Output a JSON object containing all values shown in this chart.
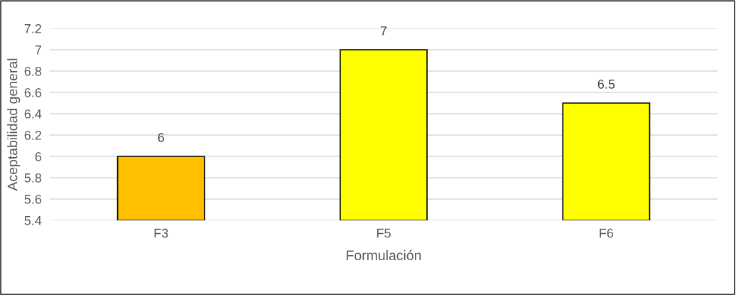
{
  "chart_data": {
    "type": "bar",
    "xlabel": "Formulación",
    "ylabel": "Aceptabilidad general",
    "categories": [
      "F3",
      "F5",
      "F6"
    ],
    "values": [
      6,
      7,
      6.5
    ],
    "colors": [
      "#ffc000",
      "#ffff00",
      "#ffff00"
    ],
    "ylim": [
      5.4,
      7.2
    ],
    "yticks": [
      5.4,
      5.6,
      5.8,
      6,
      6.2,
      6.4,
      6.6,
      6.8,
      7,
      7.2
    ],
    "grid": "y",
    "data_labels": true
  }
}
